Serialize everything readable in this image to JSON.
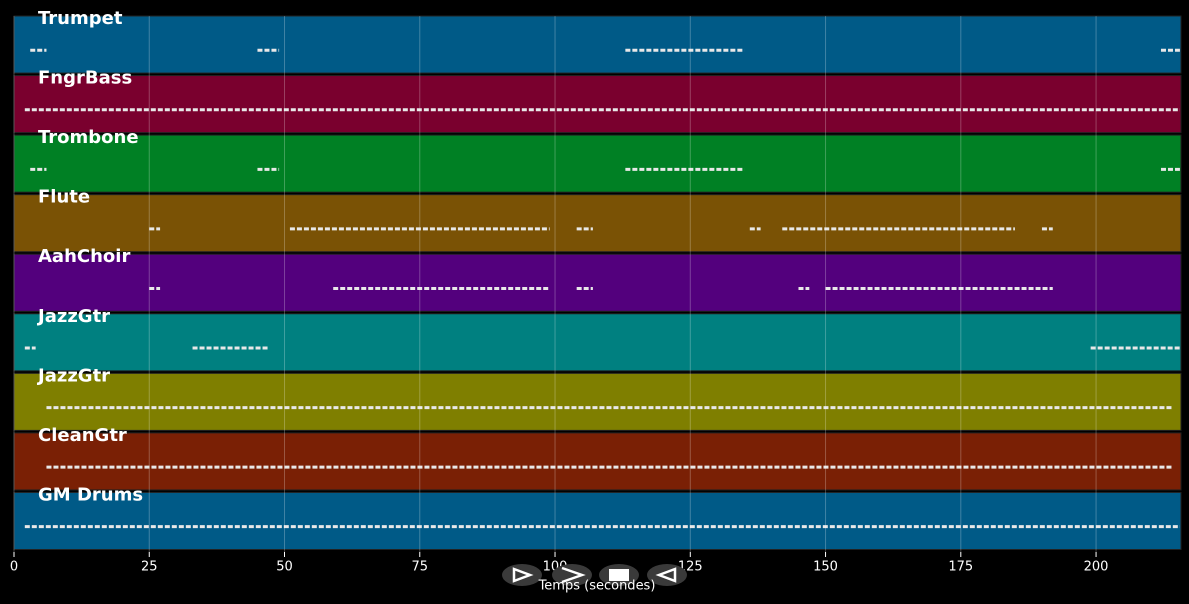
{
  "chart_data": {
    "type": "tracks",
    "xlabel": "Temps (secondes)",
    "xlim": [
      0,
      215.7
    ],
    "xticks": [
      0,
      25,
      50,
      75,
      100,
      125,
      150,
      175,
      200
    ],
    "grid": true,
    "series": [
      {
        "name": "Trumpet",
        "color": "#005a87",
        "segments": [
          [
            3,
            6
          ],
          [
            45,
            49
          ],
          [
            113,
            135
          ],
          [
            212,
            215.5
          ]
        ]
      },
      {
        "name": "FngrBass",
        "color": "#7a002e",
        "segments": [
          [
            2,
            215.5
          ]
        ]
      },
      {
        "name": "Trombone",
        "color": "#008024",
        "segments": [
          [
            3,
            6
          ],
          [
            45,
            49
          ],
          [
            113,
            135
          ],
          [
            212,
            215.5
          ]
        ]
      },
      {
        "name": "Flute",
        "color": "#7a5205",
        "segments": [
          [
            25,
            27
          ],
          [
            51,
            99
          ],
          [
            104,
            107
          ],
          [
            136,
            138
          ],
          [
            142,
            185
          ],
          [
            190,
            192
          ]
        ]
      },
      {
        "name": "AahChoir",
        "color": "#53007d",
        "segments": [
          [
            25,
            27
          ],
          [
            59,
            99
          ],
          [
            104,
            107
          ],
          [
            145,
            147
          ],
          [
            150,
            192
          ]
        ]
      },
      {
        "name": "JazzGtr",
        "color": "#008080",
        "segments": [
          [
            2,
            4
          ],
          [
            33,
            47
          ],
          [
            199,
            215.5
          ]
        ]
      },
      {
        "name": "JazzGtr",
        "color": "#7f7f00",
        "segments": [
          [
            6,
            214
          ]
        ]
      },
      {
        "name": "CleanGtr",
        "color": "#7a2005",
        "segments": [
          [
            6,
            214
          ]
        ]
      },
      {
        "name": "GM Drums",
        "color": "#005a87",
        "segments": [
          [
            2,
            215.5
          ]
        ]
      }
    ]
  }
}
